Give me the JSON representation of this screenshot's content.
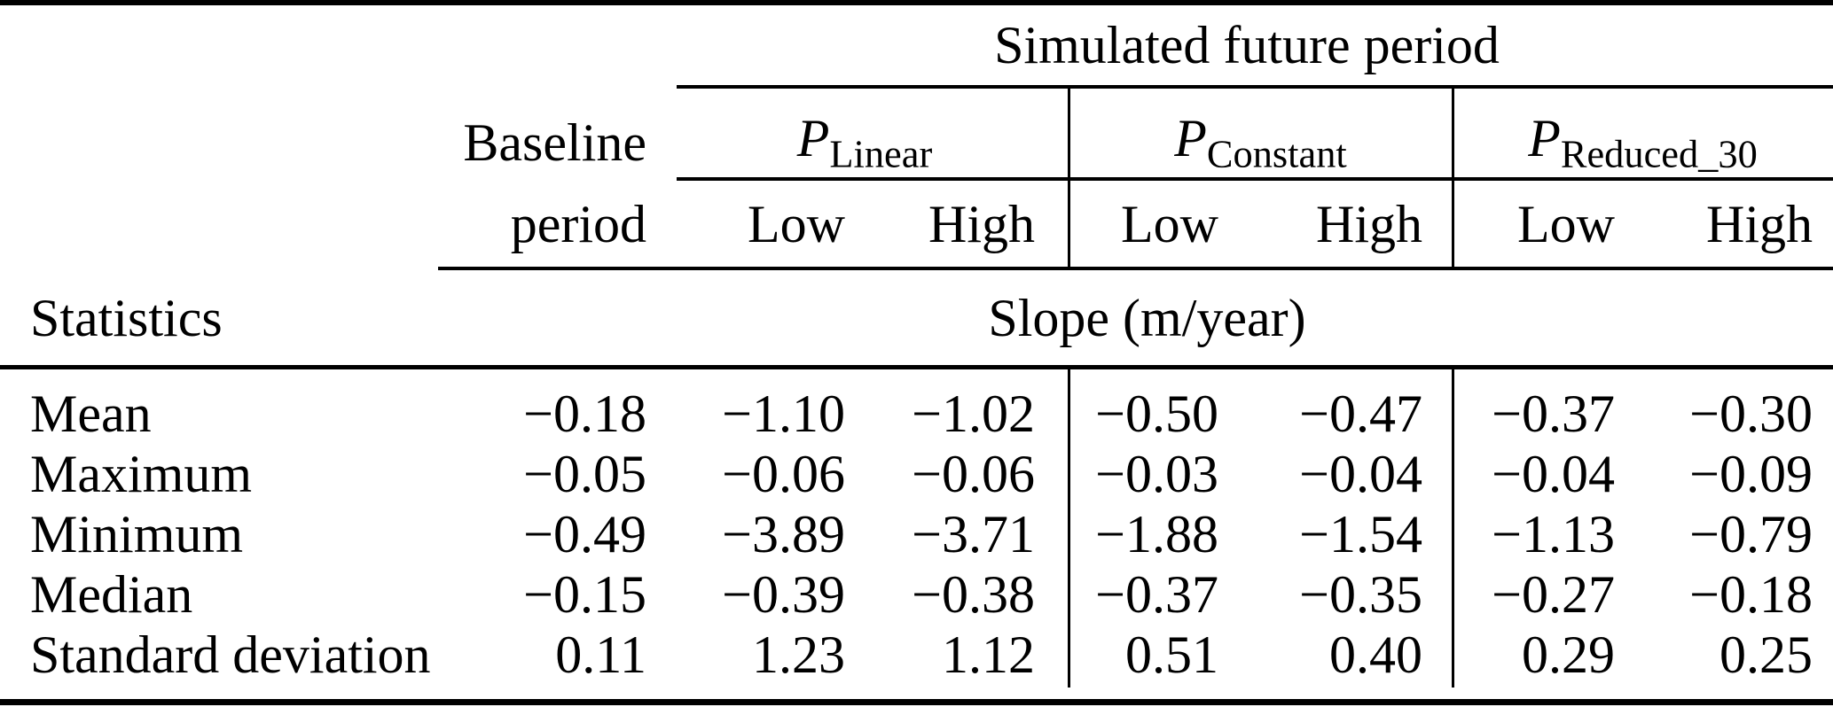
{
  "table": {
    "top_header": "Simulated future period",
    "baseline_line1": "Baseline",
    "baseline_line2": "period",
    "groups": [
      {
        "symbol": "P",
        "subscript": "Linear"
      },
      {
        "symbol": "P",
        "subscript": "Constant"
      },
      {
        "symbol": "P",
        "subscript": "Reduced_30"
      }
    ],
    "sub_col_low": "Low",
    "sub_col_high": "High",
    "stats_label": "Statistics",
    "unit_label": "Slope (m/year)",
    "rows": [
      {
        "label": "Mean",
        "values": [
          "−0.18",
          "−1.10",
          "−1.02",
          "−0.50",
          "−0.47",
          "−0.37",
          "−0.30"
        ]
      },
      {
        "label": "Maximum",
        "values": [
          "−0.05",
          "−0.06",
          "−0.06",
          "−0.03",
          "−0.04",
          "−0.04",
          "−0.09"
        ]
      },
      {
        "label": "Minimum",
        "values": [
          "−0.49",
          "−3.89",
          "−3.71",
          "−1.88",
          "−1.54",
          "−1.13",
          "−0.79"
        ]
      },
      {
        "label": "Median",
        "values": [
          "−0.15",
          "−0.39",
          "−0.38",
          "−0.37",
          "−0.35",
          "−0.27",
          "−0.18"
        ]
      },
      {
        "label": "Standard deviation",
        "values": [
          "0.11",
          "1.23",
          "1.12",
          "0.51",
          "0.40",
          "0.29",
          "0.25"
        ]
      }
    ]
  },
  "colors": {
    "text": "#000000",
    "background": "#ffffff",
    "rule": "#000000"
  }
}
